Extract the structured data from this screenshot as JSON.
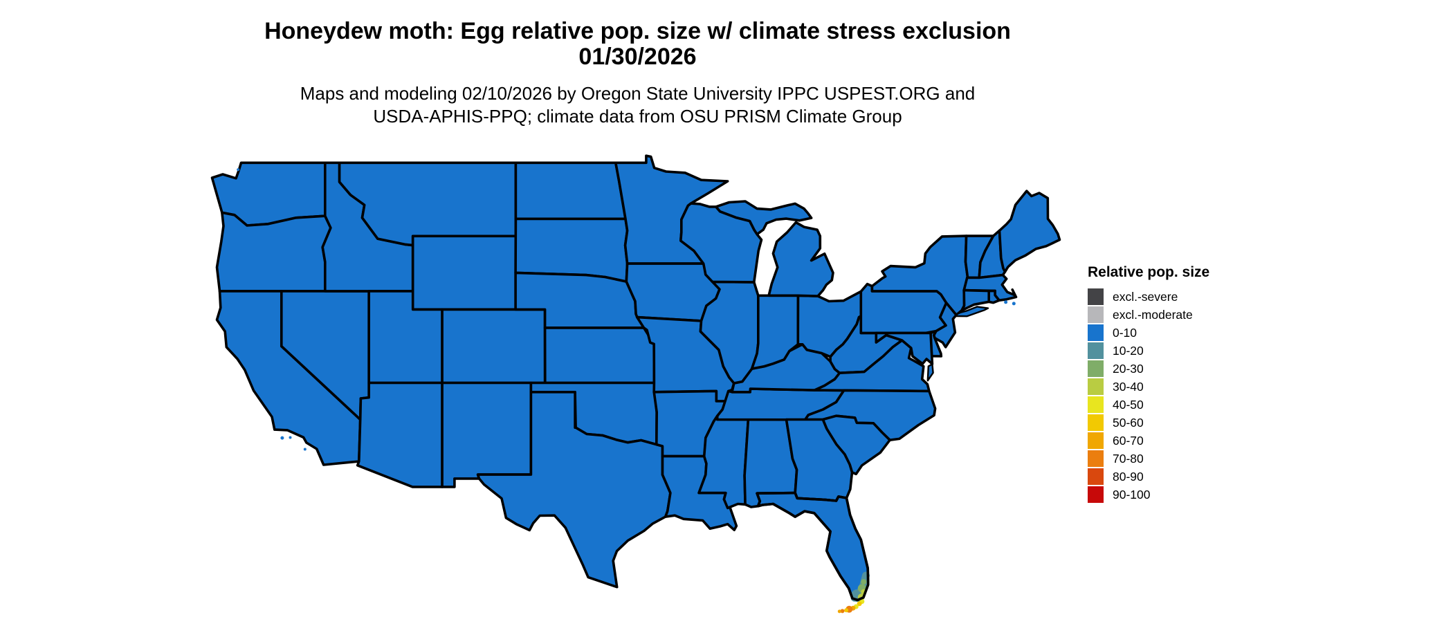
{
  "header": {
    "title_line1": "Honeydew moth: Egg relative pop. size w/ climate stress exclusion",
    "title_line2": "01/30/2026",
    "subtitle_line1": "Maps and modeling 02/10/2026 by Oregon State University IPPC USPEST.ORG and",
    "subtitle_line2": "USDA-APHIS-PPQ; climate data from OSU PRISM Climate Group"
  },
  "legend": {
    "title": "Relative pop. size",
    "items": [
      {
        "label": "excl.-severe",
        "color": "#434346"
      },
      {
        "label": "excl.-moderate",
        "color": "#B7B7BA"
      },
      {
        "label": "0-10",
        "color": "#1874CD"
      },
      {
        "label": "10-20",
        "color": "#52919E"
      },
      {
        "label": "20-30",
        "color": "#7FAD68"
      },
      {
        "label": "30-40",
        "color": "#B9CC42"
      },
      {
        "label": "40-50",
        "color": "#E8E51F"
      },
      {
        "label": "50-60",
        "color": "#F2C902"
      },
      {
        "label": "60-70",
        "color": "#F0A702"
      },
      {
        "label": "70-80",
        "color": "#EB7E0F"
      },
      {
        "label": "80-90",
        "color": "#D9480E"
      },
      {
        "label": "90-100",
        "color": "#C70909"
      }
    ]
  },
  "map": {
    "border_color": "#000000",
    "background": "#ffffff",
    "default_category": "0-10",
    "hotspots": [
      {
        "area": "south-florida-coast",
        "category": "10-20"
      },
      {
        "area": "south-florida-interior",
        "category": "20-30"
      },
      {
        "area": "south-florida-tip",
        "category": "30-40"
      },
      {
        "area": "florida-keys",
        "categories": [
          "40-50",
          "50-60",
          "60-70",
          "70-80"
        ]
      }
    ]
  }
}
